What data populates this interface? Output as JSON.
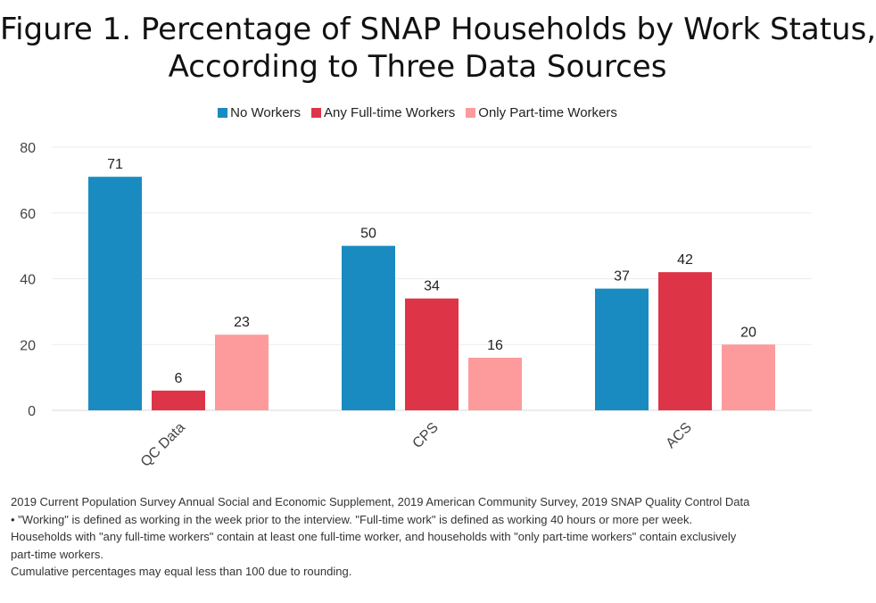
{
  "title_lines": [
    "Figure 1. Percentage of SNAP Households by Work Status,",
    "According to Three Data Sources"
  ],
  "chart_data": {
    "type": "bar",
    "title": "Figure 1. Percentage of SNAP Households by Work Status, According to Three Data Sources",
    "categories": [
      "QC Data",
      "CPS",
      "ACS"
    ],
    "series": [
      {
        "name": "No Workers",
        "color": "#1a8bc0",
        "values": [
          71,
          50,
          37
        ]
      },
      {
        "name": "Any Full-time Workers",
        "color": "#de3448",
        "values": [
          6,
          34,
          42
        ]
      },
      {
        "name": "Only Part-time Workers",
        "color": "#fd9b9c",
        "values": [
          23,
          16,
          20
        ]
      }
    ],
    "ylim": [
      0,
      80
    ],
    "yticks": [
      0,
      20,
      40,
      60,
      80
    ],
    "grid": true,
    "legend_position": "top-center",
    "data_labels": true
  },
  "footnotes": [
    "2019 Current Population Survey Annual Social and Economic Supplement, 2019 American Community Survey, 2019 SNAP Quality Control Data",
    "• \"Working\" is defined as working in the week prior to the interview. \"Full-time work\" is defined as working 40 hours or more per week.",
    "Households with \"any full-time workers\" contain at least one full-time worker, and households with \"only part-time workers\" contain exclusively",
    "part-time workers.",
    "Cumulative percentages may equal less than 100 due to rounding."
  ]
}
